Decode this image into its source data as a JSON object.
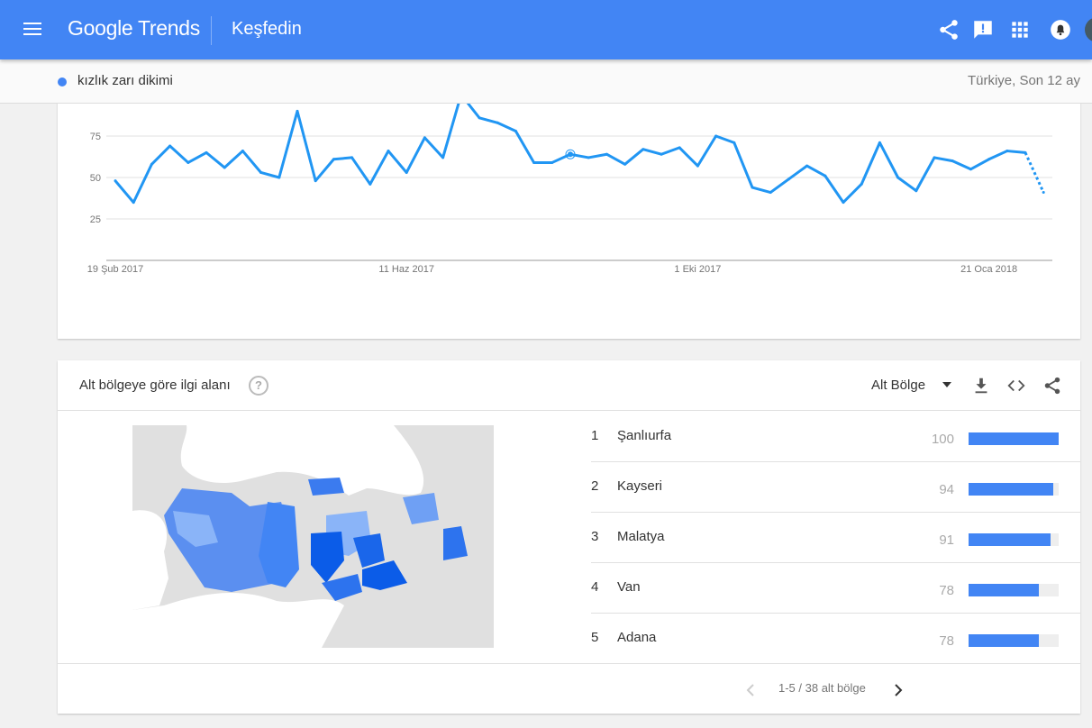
{
  "header": {
    "logo_text": "Google Trends",
    "page_title": "Keşfedin",
    "icons": [
      "menu-icon",
      "share-icon",
      "feedback-icon",
      "apps-icon",
      "notifications-icon",
      "account-avatar"
    ],
    "brand_color": "#4285f4"
  },
  "subbar": {
    "term": "kızlık zarı dikimi",
    "term_color": "#4285f4",
    "scope": "Türkiye, Son 12 ay"
  },
  "chart_data": {
    "type": "line",
    "title": "",
    "xlabel": "",
    "ylabel": "",
    "ylim": [
      0,
      100
    ],
    "yticks": [
      "25",
      "50",
      "75"
    ],
    "xticks": [
      "19 Şub 2017",
      "11 Haz 2017",
      "1 Eki 2017",
      "21 Oca 2018"
    ],
    "grid": true,
    "x": [
      "2017-02-19",
      "2017-02-26",
      "2017-03-05",
      "2017-03-12",
      "2017-03-19",
      "2017-03-26",
      "2017-04-02",
      "2017-04-09",
      "2017-04-16",
      "2017-04-23",
      "2017-04-30",
      "2017-05-07",
      "2017-05-14",
      "2017-05-21",
      "2017-05-28",
      "2017-06-04",
      "2017-06-11",
      "2017-06-18",
      "2017-06-25",
      "2017-07-02",
      "2017-07-09",
      "2017-07-16",
      "2017-07-23",
      "2017-07-30",
      "2017-08-06",
      "2017-08-13",
      "2017-08-20",
      "2017-08-27",
      "2017-09-03",
      "2017-09-10",
      "2017-09-17",
      "2017-09-24",
      "2017-10-01",
      "2017-10-08",
      "2017-10-15",
      "2017-10-22",
      "2017-10-29",
      "2017-11-05",
      "2017-11-12",
      "2017-11-19",
      "2017-11-26",
      "2017-12-03",
      "2017-12-10",
      "2017-12-17",
      "2017-12-24",
      "2017-12-31",
      "2018-01-07",
      "2018-01-14",
      "2018-01-21",
      "2018-01-28",
      "2018-02-04",
      "2018-02-11"
    ],
    "series": [
      {
        "values": [
          48,
          35,
          58,
          69,
          59,
          65,
          56,
          66,
          53,
          50,
          90,
          48,
          61,
          62,
          46,
          66,
          53,
          74,
          62,
          100,
          86,
          83,
          78,
          59,
          59,
          64,
          62,
          64,
          58,
          67,
          64,
          68,
          57,
          75,
          71,
          44,
          41,
          49,
          57,
          51,
          35,
          46,
          71,
          50,
          42,
          62,
          60,
          55,
          61,
          66,
          65,
          41
        ],
        "color": "#2196f3",
        "partial_last_point": true
      }
    ]
  },
  "regions": {
    "title": "Alt bölgeye göre ilgi alanı",
    "select_label": "Alt Bölge",
    "icons": [
      "help-icon",
      "dropdown-arrow-icon",
      "download-icon",
      "embed-icon",
      "share-icon"
    ],
    "items": [
      {
        "rank": "1",
        "name": "Şanlıurfa",
        "value": "100",
        "pct": 100
      },
      {
        "rank": "2",
        "name": "Kayseri",
        "value": "94",
        "pct": 94
      },
      {
        "rank": "3",
        "name": "Malatya",
        "value": "91",
        "pct": 91
      },
      {
        "rank": "4",
        "name": "Van",
        "value": "78",
        "pct": 78
      },
      {
        "rank": "5",
        "name": "Adana",
        "value": "78",
        "pct": 78
      }
    ],
    "pager": "1-5 / 38 alt bölge",
    "map_colors": {
      "land": "#e0e0e0",
      "low": "#8ab4f8",
      "mid": "#4285f4",
      "high": "#0b5ce8"
    }
  }
}
